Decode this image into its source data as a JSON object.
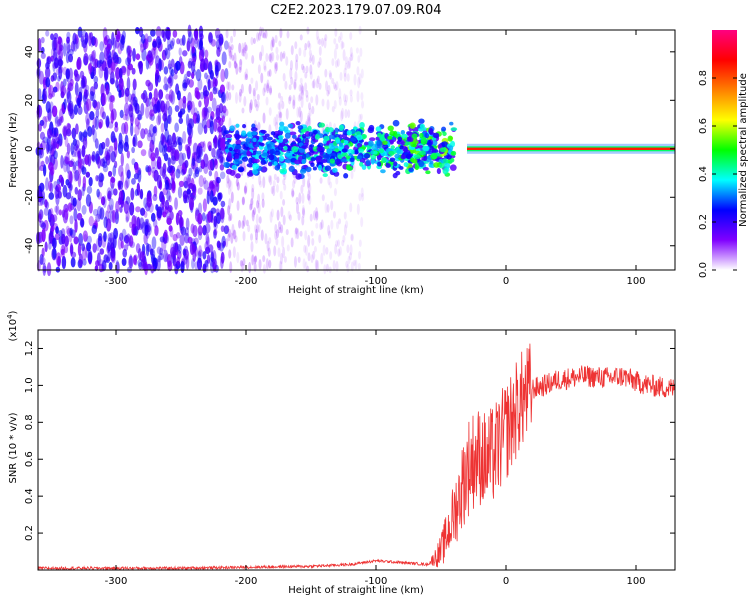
{
  "figure": {
    "title": "C2E2.2023.179.07.09.R04"
  },
  "chart_data": [
    {
      "type": "heatmap",
      "xlabel": "Height of straight line (km)",
      "ylabel": "Frequency (Hz)",
      "xlim": [
        -360,
        130
      ],
      "ylim": [
        -50,
        49
      ],
      "xticks": [
        -300,
        -200,
        -100,
        0,
        100
      ],
      "yticks": [
        -40,
        -20,
        0,
        20,
        40
      ],
      "colorbar": {
        "label": "Normalized spectral amplitude",
        "range": [
          0,
          1
        ],
        "ticks": [
          "0.0",
          "0.2",
          "0.4",
          "0.6",
          "0.8"
        ],
        "colors": [
          "#ffffff",
          "#8000ff",
          "#0000ff",
          "#00ffff",
          "#00ff00",
          "#ffff00",
          "#ff8000",
          "#ff0000",
          "#ff0080"
        ]
      },
      "features": {
        "noise_region_x": [
          -360,
          -215
        ],
        "fading_noise_x": [
          -215,
          -110
        ],
        "central_band_x": [
          -215,
          -40
        ],
        "tone_line_x": [
          -30,
          130
        ],
        "tone_frequency": 0,
        "tone_level": 0.85
      }
    },
    {
      "type": "line",
      "xlabel": "Height of straight line (km)",
      "ylabel": "SNR (10 * v/v)",
      "multiplier_label": "(x10",
      "multiplier_exp": "4",
      "multiplier_close": ")",
      "xlim": [
        -360,
        130
      ],
      "ylim": [
        0,
        1.3
      ],
      "xticks": [
        -300,
        -200,
        -100,
        0,
        100
      ],
      "yticks": [
        "0.2",
        "0.4",
        "0.6",
        "0.8",
        "1.0",
        "1.2"
      ],
      "line_color": "#ee3333",
      "x": [
        -360,
        -300,
        -250,
        -200,
        -150,
        -120,
        -100,
        -80,
        -60,
        -50,
        -45,
        -40,
        -35,
        -30,
        -25,
        -20,
        -15,
        -10,
        -5,
        0,
        5,
        10,
        20,
        30,
        40,
        60,
        80,
        90,
        100,
        110,
        130
      ],
      "values": [
        0.01,
        0.01,
        0.01,
        0.015,
        0.02,
        0.03,
        0.05,
        0.04,
        0.03,
        0.1,
        0.2,
        0.3,
        0.42,
        0.55,
        0.6,
        0.62,
        0.58,
        0.62,
        0.68,
        0.75,
        0.82,
        0.9,
        0.98,
        1.0,
        1.03,
        1.05,
        1.04,
        1.05,
        1.02,
        1.0,
        0.98
      ]
    }
  ]
}
